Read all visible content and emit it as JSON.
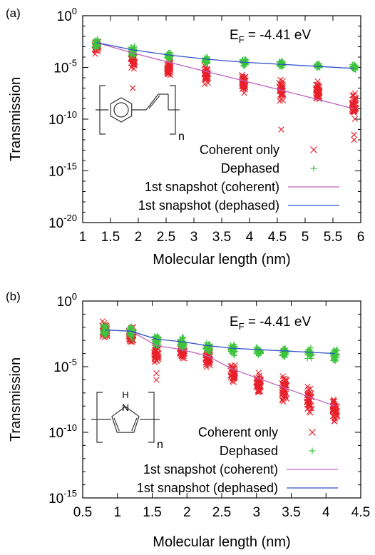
{
  "chart_data": [
    {
      "type": "scatter",
      "panel_label": "(a)",
      "xlabel": "Molecular length (nm)",
      "ylabel": "Transmission",
      "annotation": "E",
      "annotation_sub": "F",
      "annotation_rest": "= -4.41 eV",
      "xlim": [
        1,
        6
      ],
      "ylim_log10": [
        -20,
        0
      ],
      "xticks": [
        1,
        1.5,
        2,
        2.5,
        3,
        3.5,
        4,
        4.5,
        5,
        5.5,
        6
      ],
      "xtick_labels": [
        "1",
        "1.5",
        "2",
        "2.5",
        "3",
        "3.5",
        "4",
        "4.5",
        "5",
        "5.5",
        "6"
      ],
      "yticks_log10": [
        0,
        -5,
        -10,
        -15,
        -20
      ],
      "ytick_labels": [
        {
          "base": "10",
          "exp": "0"
        },
        {
          "base": "10",
          "exp": "-5"
        },
        {
          "base": "10",
          "exp": "-10"
        },
        {
          "base": "10",
          "exp": "-15"
        },
        {
          "base": "10",
          "exp": "-20"
        }
      ],
      "legend": [
        {
          "label": "Coherent only",
          "marker": "x",
          "color": "#e8202a"
        },
        {
          "label": "Dephased",
          "marker": "+",
          "color": "#3ec43e"
        },
        {
          "label": "1st snapshot (coherent)",
          "line": true,
          "color": "#c060c0"
        },
        {
          "label": "1st snapshot (dephased)",
          "line": true,
          "color": "#3050c8"
        }
      ],
      "structure_subscript": "n",
      "x_positions": [
        1.25,
        1.9,
        2.55,
        3.22,
        3.9,
        4.57,
        5.23,
        5.88
      ],
      "series": [
        {
          "name": "Coherent only",
          "color": "#e8202a",
          "marker": "x",
          "clusters": [
            {
              "x": 1.25,
              "log10_center": -3.0,
              "log10_spread": 0.9,
              "outliers": []
            },
            {
              "x": 1.9,
              "log10_center": -4.3,
              "log10_spread": 1.2,
              "outliers": [
                -7.0
              ]
            },
            {
              "x": 2.55,
              "log10_center": -5.0,
              "log10_spread": 1.1,
              "outliers": []
            },
            {
              "x": 3.22,
              "log10_center": -5.8,
              "log10_spread": 1.1,
              "outliers": []
            },
            {
              "x": 3.9,
              "log10_center": -6.4,
              "log10_spread": 1.2,
              "outliers": []
            },
            {
              "x": 4.57,
              "log10_center": -7.2,
              "log10_spread": 1.3,
              "outliers": [
                -11.0
              ]
            },
            {
              "x": 5.23,
              "log10_center": -7.3,
              "log10_spread": 1.1,
              "outliers": []
            },
            {
              "x": 5.88,
              "log10_center": -8.7,
              "log10_spread": 1.5,
              "outliers": [
                -11.5,
                -12.0
              ]
            }
          ]
        },
        {
          "name": "Dephased",
          "color": "#3ec43e",
          "marker": "+",
          "clusters": [
            {
              "x": 1.25,
              "log10_center": -2.8,
              "log10_spread": 0.8
            },
            {
              "x": 1.9,
              "log10_center": -3.4,
              "log10_spread": 0.7
            },
            {
              "x": 2.55,
              "log10_center": -3.9,
              "log10_spread": 0.6
            },
            {
              "x": 3.22,
              "log10_center": -4.3,
              "log10_spread": 0.5
            },
            {
              "x": 3.9,
              "log10_center": -4.5,
              "log10_spread": 0.5
            },
            {
              "x": 4.57,
              "log10_center": -4.7,
              "log10_spread": 0.5
            },
            {
              "x": 5.23,
              "log10_center": -4.9,
              "log10_spread": 0.4
            },
            {
              "x": 5.88,
              "log10_center": -5.0,
              "log10_spread": 0.4
            }
          ]
        },
        {
          "name": "1st snapshot (coherent)",
          "color": "#c060c0",
          "x": [
            1.25,
            1.9,
            2.55,
            3.22,
            3.9,
            4.57,
            5.23,
            5.88
          ],
          "log10_y": [
            -2.6,
            -3.6,
            -4.5,
            -5.4,
            -6.3,
            -7.2,
            -8.1,
            -9.0
          ]
        },
        {
          "name": "1st snapshot (dephased)",
          "color": "#3050c8",
          "x": [
            1.25,
            1.9,
            2.55,
            3.22,
            3.9,
            4.57,
            5.23,
            5.88
          ],
          "log10_y": [
            -2.6,
            -3.3,
            -3.8,
            -4.2,
            -4.5,
            -4.7,
            -4.9,
            -5.1
          ]
        }
      ]
    },
    {
      "type": "scatter",
      "panel_label": "(b)",
      "xlabel": "Molecular length (nm)",
      "ylabel": "Transmission",
      "annotation": "E",
      "annotation_sub": "F",
      "annotation_rest": "= -4.41 eV",
      "xlim": [
        0.5,
        4.5
      ],
      "ylim_log10": [
        -15,
        0
      ],
      "xticks": [
        0.5,
        1,
        1.5,
        2,
        2.5,
        3,
        3.5,
        4,
        4.5
      ],
      "xtick_labels": [
        "0.5",
        "1",
        "1.5",
        "2",
        "2.5",
        "3",
        "3.5",
        "4",
        "4.5"
      ],
      "yticks_log10": [
        0,
        -5,
        -10,
        -15
      ],
      "ytick_labels": [
        {
          "base": "10",
          "exp": "0"
        },
        {
          "base": "10",
          "exp": "-5"
        },
        {
          "base": "10",
          "exp": "-10"
        },
        {
          "base": "10",
          "exp": "-15"
        }
      ],
      "legend": [
        {
          "label": "Coherent only",
          "marker": "x",
          "color": "#e8202a"
        },
        {
          "label": "Dephased",
          "marker": "+",
          "color": "#3ec43e"
        },
        {
          "label": "1st snapshot (coherent)",
          "line": true,
          "color": "#c060c0"
        },
        {
          "label": "1st snapshot (dephased)",
          "line": true,
          "color": "#3050c8"
        }
      ],
      "structure_atom": "N",
      "structure_h": "H",
      "structure_subscript": "n",
      "x_positions": [
        0.82,
        1.2,
        1.56,
        1.93,
        2.3,
        2.66,
        3.03,
        3.4,
        3.76,
        4.13
      ],
      "series": [
        {
          "name": "Coherent only",
          "color": "#e8202a",
          "marker": "x",
          "clusters": [
            {
              "x": 0.82,
              "log10_center": -2.3,
              "log10_spread": 0.9,
              "outliers": []
            },
            {
              "x": 1.2,
              "log10_center": -2.6,
              "log10_spread": 0.9,
              "outliers": []
            },
            {
              "x": 1.56,
              "log10_center": -4.0,
              "log10_spread": 1.0,
              "outliers": [
                -5.5,
                -6.0
              ]
            },
            {
              "x": 1.93,
              "log10_center": -3.8,
              "log10_spread": 0.9,
              "outliers": []
            },
            {
              "x": 2.3,
              "log10_center": -4.3,
              "log10_spread": 1.0,
              "outliers": []
            },
            {
              "x": 2.66,
              "log10_center": -5.5,
              "log10_spread": 1.1,
              "outliers": []
            },
            {
              "x": 3.03,
              "log10_center": -6.2,
              "log10_spread": 1.1,
              "outliers": []
            },
            {
              "x": 3.4,
              "log10_center": -6.7,
              "log10_spread": 1.2,
              "outliers": []
            },
            {
              "x": 3.76,
              "log10_center": -7.6,
              "log10_spread": 1.3,
              "outliers": []
            },
            {
              "x": 4.13,
              "log10_center": -8.3,
              "log10_spread": 1.3,
              "outliers": []
            }
          ]
        },
        {
          "name": "Dephased",
          "color": "#3ec43e",
          "marker": "+",
          "clusters": [
            {
              "x": 0.82,
              "log10_center": -2.2,
              "log10_spread": 0.8
            },
            {
              "x": 1.2,
              "log10_center": -2.4,
              "log10_spread": 0.8
            },
            {
              "x": 1.56,
              "log10_center": -3.0,
              "log10_spread": 0.7
            },
            {
              "x": 1.93,
              "log10_center": -3.2,
              "log10_spread": 0.7
            },
            {
              "x": 2.3,
              "log10_center": -3.5,
              "log10_spread": 0.6
            },
            {
              "x": 2.66,
              "log10_center": -3.7,
              "log10_spread": 0.5
            },
            {
              "x": 3.03,
              "log10_center": -3.8,
              "log10_spread": 0.5
            },
            {
              "x": 3.4,
              "log10_center": -3.9,
              "log10_spread": 0.5
            },
            {
              "x": 3.76,
              "log10_center": -4.0,
              "log10_spread": 0.5
            },
            {
              "x": 4.13,
              "log10_center": -4.1,
              "log10_spread": 0.6
            }
          ]
        },
        {
          "name": "1st snapshot (coherent)",
          "color": "#c060c0",
          "x": [
            0.82,
            1.2,
            1.56,
            1.93,
            2.3,
            2.66,
            3.03,
            3.4,
            3.76,
            4.13
          ],
          "log10_y": [
            -2.2,
            -2.3,
            -3.4,
            -3.7,
            -4.2,
            -5.2,
            -5.9,
            -6.6,
            -7.3,
            -8.0
          ]
        },
        {
          "name": "1st snapshot (dephased)",
          "color": "#3050c8",
          "x": [
            0.82,
            1.2,
            1.56,
            1.93,
            2.3,
            2.66,
            3.03,
            3.4,
            3.76,
            4.13
          ],
          "log10_y": [
            -2.2,
            -2.3,
            -2.9,
            -3.1,
            -3.4,
            -3.6,
            -3.7,
            -3.8,
            -3.9,
            -4.0
          ]
        }
      ]
    }
  ]
}
